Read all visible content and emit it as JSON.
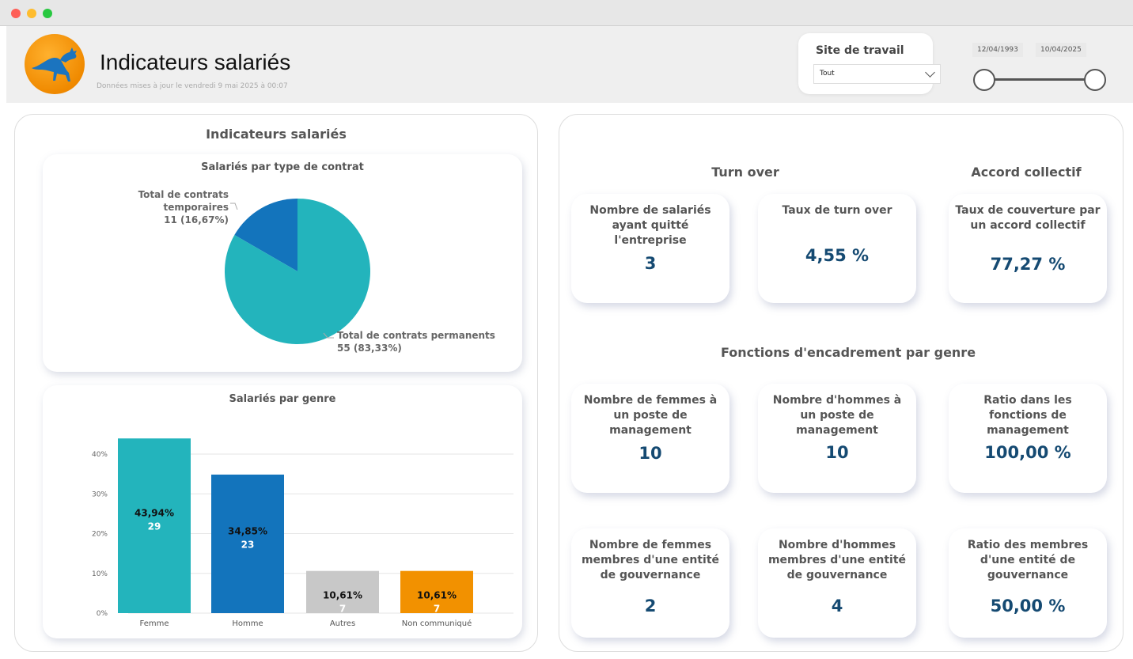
{
  "header": {
    "title": "Indicateurs salariés",
    "subtitle": "Données mises à jour le vendredi 9 mai 2025 à 00:07",
    "site_filter": {
      "label": "Site de travail",
      "value": "Tout"
    },
    "date_range": {
      "start": "12/04/1993",
      "end": "10/04/2025"
    }
  },
  "left_panel": {
    "title": "Indicateurs salariés",
    "contract_chart": {
      "title": "Salariés par type de contrat",
      "temp_label": "Total de contrats temporaires",
      "temp_value": "11 (16,67%)",
      "perm_label": "Total de contrats permanents",
      "perm_value": "55 (83,33%)"
    },
    "gender_chart": {
      "title": "Salariés par genre"
    }
  },
  "right_panel": {
    "turnover": {
      "heading": "Turn over",
      "left_label": "Nombre de salariés ayant quitté l'entreprise",
      "left_value": "3",
      "rate_label": "Taux de turn over",
      "rate_value": "4,55 %"
    },
    "collective": {
      "heading": "Accord collectif",
      "label": "Taux de couverture par un accord collectif",
      "value": "77,27 %"
    },
    "management": {
      "heading": "Fonctions d'encadrement par genre",
      "women_label": "Nombre de femmes à un poste de management",
      "women_value": "10",
      "men_label": "Nombre d'hommes à un poste de management",
      "men_value": "10",
      "ratio_label": "Ratio dans les fonctions de management",
      "ratio_value": "100,00 %"
    },
    "governance": {
      "women_label": "Nombre de femmes membres d'une entité de gouvernance",
      "women_value": "2",
      "men_label": "Nombre d'hommes membres d'une entité de gouvernance",
      "men_value": "4",
      "ratio_label": "Ratio des membres d'une entité de gouvernance",
      "ratio_value": "50,00 %"
    }
  },
  "chart_data": [
    {
      "type": "pie",
      "title": "Salariés par type de contrat",
      "slices": [
        {
          "name": "Total de contrats permanents",
          "value": 55,
          "percent": 83.33,
          "color": "#23b4bc"
        },
        {
          "name": "Total de contrats temporaires",
          "value": 11,
          "percent": 16.67,
          "color": "#1374bc"
        }
      ]
    },
    {
      "type": "bar",
      "title": "Salariés par genre",
      "categories": [
        "Femme",
        "Homme",
        "Autres",
        "Non communiqué"
      ],
      "values": [
        43.94,
        34.85,
        10.61,
        10.61
      ],
      "value_labels": [
        "43,94%",
        "34,85%",
        "10,61%",
        "10,61%"
      ],
      "counts": [
        "29",
        "23",
        "7",
        "7"
      ],
      "colors": [
        "#23b4bc",
        "#1374bc",
        "#c8c8c8",
        "#f29100"
      ],
      "yticks": [
        "0%",
        "10%",
        "20%",
        "30%",
        "40%"
      ],
      "ylim": [
        0,
        50
      ],
      "grid": true
    }
  ]
}
